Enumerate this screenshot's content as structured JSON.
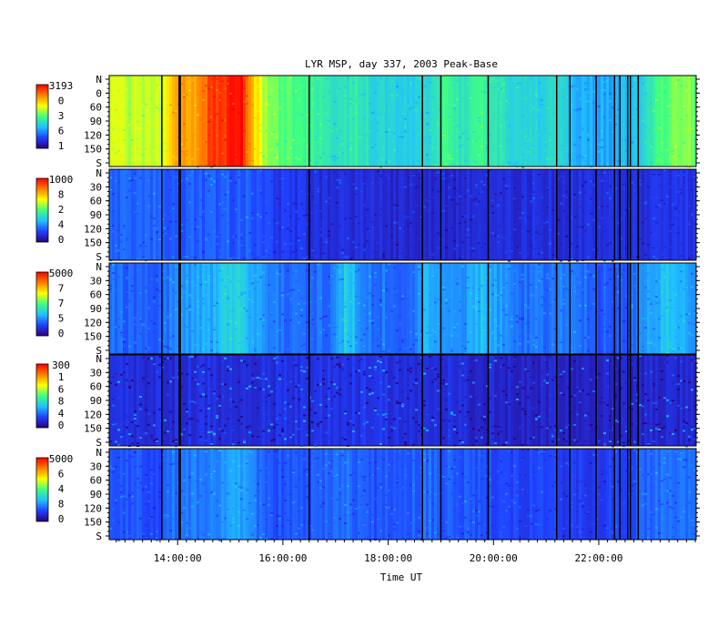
{
  "chart_data": {
    "type": "heatmap",
    "title": "LYR MSP, day 337, 2003 Peak-Base",
    "xlabel": "Time UT",
    "x_range_hours": [
      12.7,
      23.85
    ],
    "x_ticks": [
      "14:00:00",
      "16:00:00",
      "18:00:00",
      "20:00:00",
      "22:00:00"
    ],
    "x_tick_hours": [
      14,
      16,
      18,
      20,
      22
    ],
    "y_ticks": [
      "N",
      "30",
      "60",
      "90",
      "120",
      "150",
      "S"
    ],
    "y_tick_values": [
      0,
      30,
      60,
      90,
      120,
      150,
      180
    ],
    "first_panel_y_ticks": [
      "N",
      "0",
      "60",
      "90",
      "120",
      "150",
      "S"
    ],
    "colormap": [
      "#2a007a",
      "#2040ff",
      "#20c0ff",
      "#40ff80",
      "#ffff00",
      "#ff8000",
      "#ff0000"
    ],
    "data_gap_hours": [
      13.7,
      14.03,
      14.05,
      16.5,
      18.65,
      19.0,
      19.9,
      21.2,
      21.45,
      21.95,
      22.3,
      22.4,
      22.55,
      22.6,
      22.75
    ],
    "panels": [
      {
        "colorbar_labels": [
          "3193",
          "0",
          "3",
          "6",
          "1"
        ],
        "max_intensity_fraction": 1.0,
        "intensity_profile": [
          [
            12.7,
            0.62
          ],
          [
            13.3,
            0.6
          ],
          [
            13.7,
            0.65
          ],
          [
            14.0,
            0.78
          ],
          [
            14.4,
            0.8
          ],
          [
            14.6,
            0.92
          ],
          [
            15.2,
            0.98
          ],
          [
            15.4,
            0.75
          ],
          [
            15.7,
            0.55
          ],
          [
            16.1,
            0.5
          ],
          [
            16.6,
            0.46
          ],
          [
            17.0,
            0.42
          ],
          [
            17.4,
            0.45
          ],
          [
            17.8,
            0.38
          ],
          [
            18.2,
            0.36
          ],
          [
            18.7,
            0.38
          ],
          [
            19.1,
            0.5
          ],
          [
            19.4,
            0.42
          ],
          [
            19.8,
            0.48
          ],
          [
            20.2,
            0.4
          ],
          [
            20.8,
            0.38
          ],
          [
            21.2,
            0.4
          ],
          [
            21.6,
            0.32
          ],
          [
            22.2,
            0.3
          ],
          [
            22.7,
            0.36
          ],
          [
            23.1,
            0.5
          ],
          [
            23.5,
            0.55
          ],
          [
            23.85,
            0.55
          ]
        ]
      },
      {
        "colorbar_labels": [
          "1000",
          "8",
          "2",
          "4",
          "0"
        ],
        "max_intensity_fraction": 0.35,
        "intensity_profile": [
          [
            12.7,
            0.22
          ],
          [
            14.5,
            0.2
          ],
          [
            15.3,
            0.2
          ],
          [
            16.0,
            0.14
          ],
          [
            17.0,
            0.12
          ],
          [
            18.5,
            0.1
          ],
          [
            20.0,
            0.12
          ],
          [
            22.0,
            0.12
          ],
          [
            23.85,
            0.14
          ]
        ]
      },
      {
        "colorbar_labels": [
          "5000",
          "7",
          "7",
          "5",
          "0"
        ],
        "max_intensity_fraction": 0.55,
        "intensity_profile": [
          [
            12.7,
            0.22
          ],
          [
            13.6,
            0.2
          ],
          [
            14.0,
            0.28
          ],
          [
            14.6,
            0.3
          ],
          [
            15.1,
            0.4
          ],
          [
            15.4,
            0.3
          ],
          [
            16.0,
            0.22
          ],
          [
            16.9,
            0.22
          ],
          [
            17.2,
            0.38
          ],
          [
            17.5,
            0.24
          ],
          [
            18.5,
            0.22
          ],
          [
            18.7,
            0.34
          ],
          [
            19.0,
            0.26
          ],
          [
            19.4,
            0.28
          ],
          [
            19.8,
            0.34
          ],
          [
            20.4,
            0.22
          ],
          [
            21.2,
            0.24
          ],
          [
            22.0,
            0.2
          ],
          [
            22.6,
            0.22
          ],
          [
            23.3,
            0.36
          ],
          [
            23.85,
            0.26
          ]
        ]
      },
      {
        "colorbar_labels": [
          "300",
          "1",
          "6",
          "8",
          "4",
          "0"
        ],
        "max_intensity_fraction": 0.3,
        "intensity_profile": [
          [
            12.7,
            0.12
          ],
          [
            15.0,
            0.12
          ],
          [
            17.6,
            0.14
          ],
          [
            20.0,
            0.1
          ],
          [
            23.85,
            0.1
          ]
        ]
      },
      {
        "colorbar_labels": [
          "5000",
          "6",
          "4",
          "8",
          "0"
        ],
        "max_intensity_fraction": 0.45,
        "intensity_profile": [
          [
            12.7,
            0.2
          ],
          [
            13.6,
            0.18
          ],
          [
            14.0,
            0.24
          ],
          [
            14.6,
            0.24
          ],
          [
            15.1,
            0.32
          ],
          [
            15.4,
            0.24
          ],
          [
            16.0,
            0.18
          ],
          [
            17.2,
            0.24
          ],
          [
            17.5,
            0.18
          ],
          [
            18.7,
            0.22
          ],
          [
            19.4,
            0.2
          ],
          [
            20.0,
            0.18
          ],
          [
            21.0,
            0.16
          ],
          [
            22.0,
            0.15
          ],
          [
            23.3,
            0.24
          ],
          [
            23.85,
            0.2
          ]
        ]
      }
    ]
  }
}
